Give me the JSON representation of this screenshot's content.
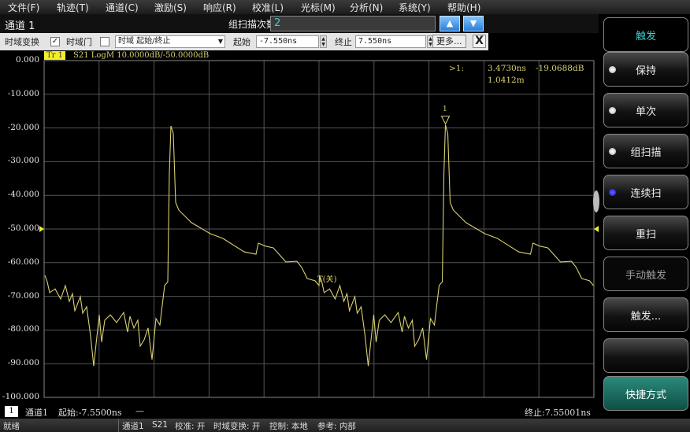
{
  "menu": [
    "文件(F)",
    "轨迹(T)",
    "通道(C)",
    "激励(S)",
    "响应(R)",
    "校准(L)",
    "光标(M)",
    "分析(N)",
    "系统(Y)",
    "帮助(H)"
  ],
  "channel_title": "通道 1",
  "group_scan": {
    "label": "组扫描次数",
    "value": "2"
  },
  "toolbar": {
    "time_transform_label": "时域变换",
    "time_transform_checked": "✓",
    "gate_label": "时域门",
    "gate_checked": "",
    "mode_select": "时域 起始/终止",
    "start_label": "起始",
    "start_value": "-7.550ns",
    "stop_label": "终止",
    "stop_value": "7.550ns",
    "more_label": "更多...",
    "close_label": "X"
  },
  "trace_header": {
    "badge": "Tr 1",
    "text": "S21 LogM 10.0000dB/-50.0000dB"
  },
  "marker_readout": {
    "id": ">1:",
    "time": "3.4730ns",
    "value": "-19.0688dB",
    "distance": "1.0412m"
  },
  "marker_label": "1",
  "gate_label": "T(关)",
  "colors": {
    "trace": "#d8d070",
    "grid": "#555555",
    "reference_marker": "#f2ef2a",
    "accent": "#44cccc"
  },
  "chart_data": {
    "type": "line",
    "title": "",
    "xlabel": "",
    "ylabel": "",
    "xlim": [
      -7.55,
      7.55
    ],
    "ylim": [
      -100,
      0
    ],
    "grid": true,
    "reference_level": -50,
    "yticks": [
      "0.000",
      "-10.000",
      "-20.000",
      "-30.000",
      "-40.000",
      "-50.000",
      "-60.000",
      "-70.000",
      "-80.000",
      "-90.000",
      "-100.000"
    ],
    "series": [
      {
        "x": [
          -7.528,
          -7.463,
          -7.399,
          -7.247,
          -7.096,
          -6.966,
          -6.858,
          -6.771,
          -6.706,
          -6.555,
          -6.49,
          -6.382,
          -6.274,
          -6.187,
          -6.122,
          -6.036,
          -5.971,
          -5.884,
          -5.733,
          -5.56,
          -5.365,
          -5.257,
          -5.192,
          -5.084,
          -4.976,
          -4.911,
          -4.803,
          -4.694,
          -4.586,
          -4.478,
          -4.37,
          -4.24,
          -4.154,
          -4.11,
          -4.067,
          -4.002,
          -3.937,
          -3.851,
          -3.505,
          -2.985,
          -2.639,
          -2.055,
          -1.731,
          -1.666,
          -1.471,
          -1.255,
          -0.909,
          -0.606,
          -0.476,
          -0.325,
          -0.108,
          0.0,
          0.012,
          0.077,
          0.141,
          0.293,
          0.444,
          0.574,
          0.682,
          0.769,
          0.834,
          0.985,
          1.05,
          1.158,
          1.266,
          1.353,
          1.418,
          1.504,
          1.569,
          1.656,
          1.807,
          1.98,
          2.175,
          2.283,
          2.348,
          2.456,
          2.564,
          2.629,
          2.737,
          2.846,
          2.954,
          3.062,
          3.17,
          3.3,
          3.386,
          3.43,
          3.473,
          3.538,
          3.603,
          3.689,
          4.035,
          4.555,
          4.901,
          5.485,
          5.809,
          5.874,
          6.069,
          6.285,
          6.631,
          6.934,
          7.064,
          7.215,
          7.432,
          7.54
        ],
        "y": [
          -63.8,
          -65.7,
          -68.9,
          -67.8,
          -70.8,
          -66.8,
          -71.5,
          -69.2,
          -74.3,
          -70.1,
          -75.0,
          -73.1,
          -81.8,
          -90.7,
          -84.1,
          -75.5,
          -83.6,
          -77.1,
          -75.5,
          -77.8,
          -74.8,
          -80.6,
          -75.9,
          -79.4,
          -77.1,
          -84.8,
          -82.9,
          -79.4,
          -88.8,
          -76.6,
          -78.5,
          -66.8,
          -65.7,
          -33.4,
          -19.4,
          -21.7,
          -42.1,
          -44.4,
          -48.1,
          -51.4,
          -52.8,
          -56.8,
          -57.5,
          -54.2,
          -55.1,
          -55.6,
          -59.8,
          -59.6,
          -61.4,
          -64.7,
          -65.4,
          -66.8,
          -63.8,
          -65.7,
          -68.9,
          -67.8,
          -70.8,
          -66.8,
          -71.5,
          -69.2,
          -74.3,
          -70.1,
          -75.0,
          -73.1,
          -81.8,
          -90.7,
          -84.1,
          -75.5,
          -83.6,
          -77.1,
          -75.5,
          -77.8,
          -74.8,
          -80.6,
          -75.9,
          -79.4,
          -77.1,
          -84.8,
          -82.9,
          -79.4,
          -88.8,
          -76.6,
          -78.5,
          -66.8,
          -65.7,
          -33.4,
          -19.07,
          -21.7,
          -42.1,
          -44.4,
          -48.1,
          -51.4,
          -52.8,
          -56.8,
          -57.5,
          -54.2,
          -55.1,
          -55.6,
          -59.8,
          -59.6,
          -61.4,
          -64.7,
          -65.4,
          -66.8
        ]
      }
    ],
    "marker": {
      "x": 3.473,
      "y": -19.0688
    }
  },
  "side_panel": {
    "title": "触发",
    "buttons": [
      {
        "label": "保持",
        "radio": "off"
      },
      {
        "label": "单次",
        "radio": "off"
      },
      {
        "label": "组扫描",
        "radio": "off"
      },
      {
        "label": "连续扫",
        "radio": "on"
      },
      {
        "label": "重扫"
      },
      {
        "label": "手动触发",
        "disabled": true
      },
      {
        "label": "触发..."
      },
      {
        "label": ""
      },
      {
        "label": "快捷方式"
      }
    ]
  },
  "bottom_info": {
    "channel_num": "1",
    "channel": "通道1",
    "start": "起始:-7.5500ns",
    "dash": "—",
    "stop": "终止:7.55001ns"
  },
  "statusbar": {
    "state": "就绪",
    "channel": "通道1",
    "param": "S21",
    "cal": "校准: 开",
    "time_transform": "时域变换: 开",
    "control": "控制: 本地",
    "ref": "参考: 内部"
  }
}
